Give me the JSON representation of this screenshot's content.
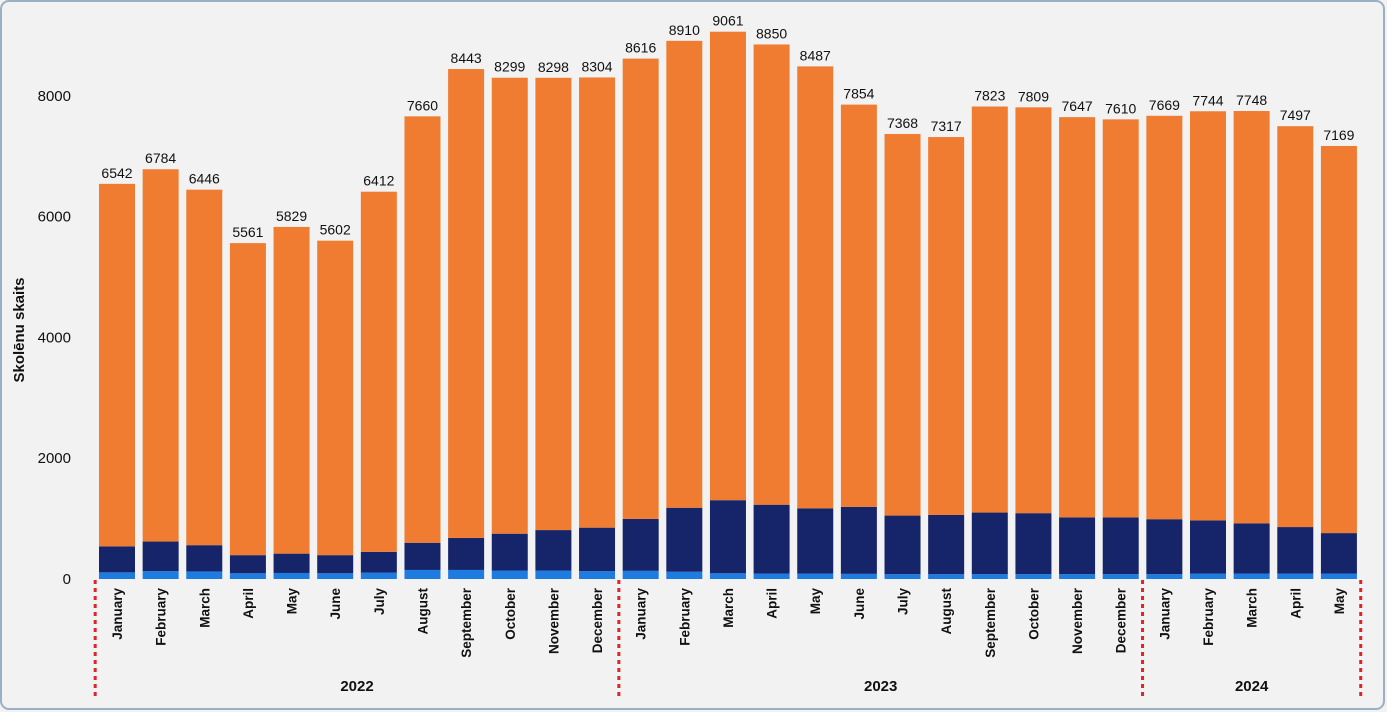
{
  "chart_data": {
    "type": "bar",
    "stacked": true,
    "ylabel": "Skolēnu skaits",
    "ylim": [
      0,
      9300
    ],
    "yticks": [
      0,
      2000,
      4000,
      6000,
      8000
    ],
    "grid": false,
    "colors": {
      "orange": "#f07c32",
      "navy": "#16256a",
      "blue": "#1e7be0",
      "separator": "#d9262a",
      "background": "#f1f2f1",
      "frame": "#9bb0c4"
    },
    "categories": [
      "January",
      "February",
      "March",
      "April",
      "May",
      "June",
      "July",
      "August",
      "September",
      "October",
      "November",
      "December",
      "January",
      "February",
      "March",
      "April",
      "May",
      "June",
      "July",
      "August",
      "September",
      "October",
      "November",
      "December",
      "January",
      "February",
      "March",
      "April",
      "May"
    ],
    "years": [
      {
        "label": "2022",
        "start": 0,
        "end": 11
      },
      {
        "label": "2023",
        "start": 12,
        "end": 23
      },
      {
        "label": "2024",
        "start": 24,
        "end": 28
      }
    ],
    "totals": [
      6542,
      6784,
      6446,
      5561,
      5829,
      5602,
      6412,
      7660,
      8443,
      8299,
      8298,
      8304,
      8616,
      8910,
      9061,
      8850,
      8487,
      7854,
      7368,
      7317,
      7823,
      7809,
      7647,
      7610,
      7669,
      7744,
      7748,
      7497,
      7169
    ],
    "series": [
      {
        "color": "#1e7be0",
        "values": [
          110,
          130,
          125,
          95,
          100,
          95,
          105,
          150,
          150,
          140,
          140,
          130,
          135,
          120,
          95,
          90,
          90,
          85,
          80,
          80,
          80,
          80,
          80,
          80,
          80,
          90,
          90,
          90,
          90
        ]
      },
      {
        "color": "#16256a",
        "values": [
          430,
          490,
          435,
          300,
          320,
          300,
          345,
          450,
          530,
          610,
          670,
          720,
          860,
          1060,
          1210,
          1140,
          1080,
          1110,
          970,
          980,
          1020,
          1010,
          940,
          940,
          910,
          880,
          830,
          770,
          670
        ]
      },
      {
        "color": "#f07c32",
        "values": [
          6002,
          6164,
          5886,
          5166,
          5409,
          5207,
          5962,
          7060,
          7763,
          7549,
          7488,
          7454,
          7621,
          7730,
          7756,
          7620,
          7317,
          6659,
          6318,
          6257,
          6723,
          6719,
          6627,
          6590,
          6679,
          6774,
          6828,
          6637,
          6409
        ]
      }
    ]
  }
}
